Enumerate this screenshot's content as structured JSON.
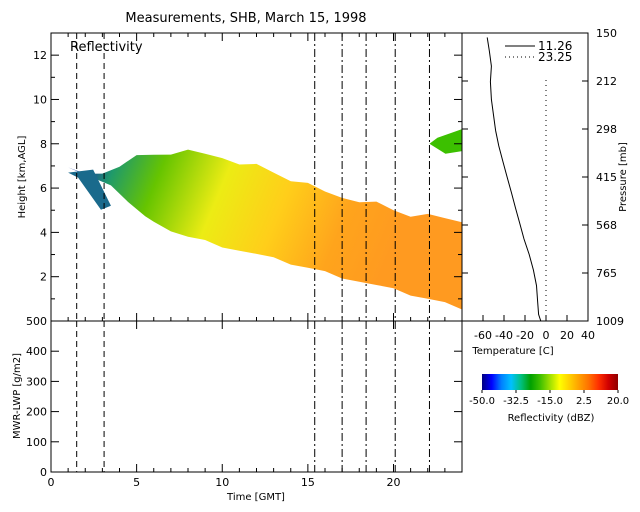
{
  "title": "Measurements, SHB, March 15, 1998",
  "chart_data": [
    {
      "type": "heatmap",
      "panel": "reflectivity",
      "label": "Reflectivity",
      "xlabel": "",
      "ylabel": "Height [km,AGL]",
      "xlim": [
        0,
        24
      ],
      "ylim": [
        0,
        13
      ],
      "xticks": [
        0,
        5,
        10,
        15,
        20
      ],
      "yticks": [
        2,
        4,
        6,
        8,
        10,
        12
      ],
      "ytick_labels": [
        "2",
        "4",
        "6",
        "8",
        "10",
        "12"
      ],
      "dashed_lines_x": [
        1.5,
        3.1
      ],
      "dashdot_lines_x": [
        15.4,
        17.0,
        18.4,
        20.1,
        22.1
      ],
      "echo": {
        "top_km": [
          [
            1.0,
            6.8
          ],
          [
            2.0,
            6.6
          ],
          [
            3.0,
            6.7
          ],
          [
            4.0,
            7.1
          ],
          [
            5.0,
            7.4
          ],
          [
            6.0,
            7.5
          ],
          [
            7.0,
            7.6
          ],
          [
            8.0,
            7.6
          ],
          [
            9.0,
            7.5
          ],
          [
            10.0,
            7.4
          ],
          [
            11.0,
            7.2
          ],
          [
            12.0,
            7.0
          ],
          [
            13.0,
            6.7
          ],
          [
            14.0,
            6.4
          ],
          [
            15.0,
            6.1
          ],
          [
            16.0,
            5.8
          ],
          [
            17.0,
            5.6
          ],
          [
            18.0,
            5.5
          ],
          [
            19.0,
            5.3
          ],
          [
            20.0,
            5.0
          ],
          [
            21.0,
            4.8
          ],
          [
            22.0,
            4.7
          ],
          [
            23.0,
            4.6
          ],
          [
            24.0,
            4.5
          ]
        ],
        "base_km": [
          [
            3.5,
            6.2
          ],
          [
            4.5,
            5.4
          ],
          [
            5.5,
            4.7
          ],
          [
            6.0,
            4.4
          ],
          [
            7.0,
            4.1
          ],
          [
            8.0,
            3.8
          ],
          [
            9.0,
            3.6
          ],
          [
            10.0,
            3.4
          ],
          [
            11.0,
            3.2
          ],
          [
            12.0,
            3.0
          ],
          [
            13.0,
            2.8
          ],
          [
            14.0,
            2.6
          ],
          [
            15.0,
            2.4
          ],
          [
            16.0,
            2.2
          ],
          [
            17.0,
            2.0
          ],
          [
            18.0,
            1.8
          ],
          [
            19.0,
            1.6
          ],
          [
            20.0,
            1.4
          ],
          [
            21.0,
            1.2
          ],
          [
            22.0,
            1.0
          ],
          [
            23.0,
            0.8
          ],
          [
            24.0,
            0.6
          ]
        ],
        "upper_patch_km": [
          [
            22.1,
            8.0
          ],
          [
            24.0,
            8.3
          ]
        ],
        "low_patch_km": [
          [
            1.0,
            6.7
          ],
          [
            3.5,
            5.2
          ]
        ]
      }
    },
    {
      "type": "line",
      "panel": "temperature-profile",
      "xlabel": "Temperature [C]",
      "ylabel": "Pressure [mb]",
      "xlim": [
        -80,
        40
      ],
      "xticks": [
        -60,
        -40,
        -20,
        0,
        20,
        40
      ],
      "pressure_ticks": [
        "150",
        "212",
        "298",
        "415",
        "568",
        "765",
        "1009"
      ],
      "series": [
        {
          "name": "11.26",
          "style": "solid",
          "points": [
            [
              -56,
              12.8
            ],
            [
              -54,
              12.2
            ],
            [
              -52,
              11.5
            ],
            [
              -53,
              10.8
            ],
            [
              -52,
              10.0
            ],
            [
              -50,
              9.3
            ],
            [
              -48,
              8.6
            ],
            [
              -45,
              7.9
            ],
            [
              -41,
              7.2
            ],
            [
              -37,
              6.5
            ],
            [
              -33,
              5.8
            ],
            [
              -29,
              5.1
            ],
            [
              -25,
              4.4
            ],
            [
              -21,
              3.7
            ],
            [
              -16,
              3.0
            ],
            [
              -12,
              2.3
            ],
            [
              -9,
              1.6
            ],
            [
              -8,
              0.9
            ],
            [
              -7,
              0.3
            ],
            [
              -5,
              0.0
            ]
          ]
        },
        {
          "name": "23.25",
          "style": "dotted",
          "points": [
            [
              0,
              0.0
            ],
            [
              0,
              11.0
            ]
          ]
        }
      ]
    },
    {
      "type": "line",
      "panel": "lwp",
      "xlabel": "Time [GMT]",
      "ylabel": "MWR-LWP [g/m2]",
      "xlim": [
        0,
        24
      ],
      "ylim": [
        0,
        500
      ],
      "xticks": [
        0,
        5,
        10,
        15,
        20
      ],
      "yticks": [
        0,
        100,
        200,
        300,
        400,
        500
      ],
      "ytick_labels": [
        "0",
        "100",
        "200",
        "300",
        "400",
        "500"
      ],
      "dashed_lines_x": [
        1.5,
        3.1
      ],
      "dashdot_lines_x": [
        15.4,
        17.0,
        18.4,
        20.1,
        22.1
      ],
      "series": []
    },
    {
      "type": "heatmap",
      "panel": "colorbar",
      "title": "Reflectivity (dBZ)",
      "range": [
        -50.0,
        20.0
      ],
      "tick_labels": [
        "-50.0",
        "-32.5",
        "-15.0",
        "2.5",
        "20.0"
      ],
      "tick_values": [
        -50.0,
        -32.5,
        -15.0,
        2.5,
        20.0
      ],
      "colors": [
        "#000080",
        "#0000ff",
        "#0080ff",
        "#00c0ff",
        "#00c080",
        "#00a000",
        "#40c000",
        "#a0e000",
        "#ffff00",
        "#ffd000",
        "#ffa000",
        "#ff7000",
        "#ff3000",
        "#d00000",
        "#900000"
      ]
    }
  ]
}
